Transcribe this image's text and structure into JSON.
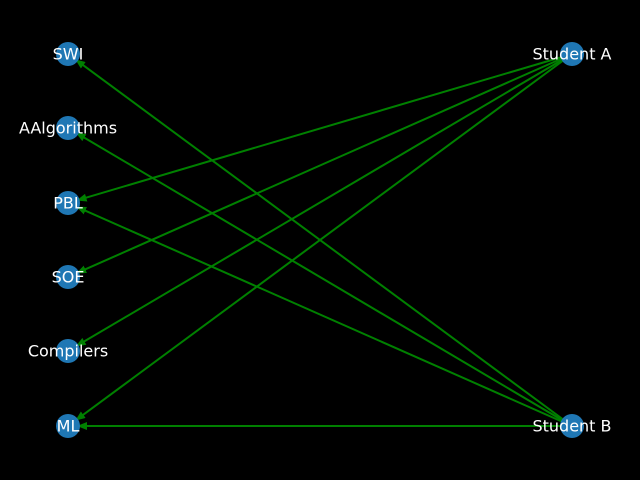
{
  "graph": {
    "background": "#000000",
    "node_color": "#1f77b4",
    "edge_color": "#008000",
    "label_color": "#ffffff",
    "nodes": [
      {
        "id": "swi",
        "label": "SWI"
      },
      {
        "id": "aalgorithms",
        "label": "AAlgorithms"
      },
      {
        "id": "pbl",
        "label": "PBL"
      },
      {
        "id": "soe",
        "label": "SOE"
      },
      {
        "id": "compilers",
        "label": "Compilers"
      },
      {
        "id": "ml",
        "label": "ML"
      },
      {
        "id": "student-a",
        "label": "Student A"
      },
      {
        "id": "student-b",
        "label": "Student B"
      }
    ],
    "edges": [
      {
        "from": "student-a",
        "to": "pbl"
      },
      {
        "from": "student-a",
        "to": "soe"
      },
      {
        "from": "student-a",
        "to": "compilers"
      },
      {
        "from": "student-a",
        "to": "ml"
      },
      {
        "from": "student-b",
        "to": "swi"
      },
      {
        "from": "student-b",
        "to": "aalgorithms"
      },
      {
        "from": "student-b",
        "to": "pbl"
      },
      {
        "from": "student-b",
        "to": "ml"
      }
    ]
  }
}
